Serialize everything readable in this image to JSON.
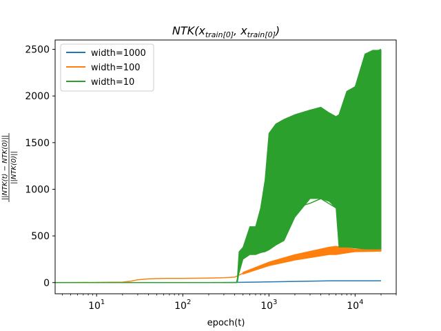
{
  "chart_data": {
    "type": "line",
    "title": "NTK(x_train[0], x_train[0])",
    "title_parts": {
      "main": "NTK(",
      "x1": "x",
      "sub1": "train[0]",
      "comma": ", ",
      "x2": "x",
      "sub2": "train[0]",
      "close": ")"
    },
    "xlabel": "epoch(t)",
    "ylabel": "||NTK(t) − NTK(0)|| / ||NTK(0)||",
    "ylabel_parts": {
      "numerator": "||NTK(t) − NTK(0)||",
      "denominator": "||NTK(0)||"
    },
    "x_scale": "log",
    "xlim": [
      3.3,
      30000
    ],
    "ylim": [
      -120,
      2600
    ],
    "x_major_ticks": [
      {
        "value": 10,
        "base": "10",
        "exp": "1"
      },
      {
        "value": 100,
        "base": "10",
        "exp": "2"
      },
      {
        "value": 1000,
        "base": "10",
        "exp": "3"
      },
      {
        "value": 10000,
        "base": "10",
        "exp": "4"
      }
    ],
    "y_ticks": [
      0,
      500,
      1000,
      1500,
      2000,
      2500
    ],
    "y_tick_labels": [
      "0",
      "500",
      "1000",
      "1500",
      "2000",
      "2500"
    ],
    "grid": false,
    "legend_position": "top-left",
    "series": [
      {
        "name": "width=1000",
        "color": "#1f77b4",
        "points": [
          [
            3.3,
            0
          ],
          [
            200,
            0
          ],
          [
            400,
            2
          ],
          [
            800,
            6
          ],
          [
            1000,
            8
          ],
          [
            2000,
            12
          ],
          [
            5000,
            18
          ],
          [
            10000,
            19
          ],
          [
            20000,
            19
          ]
        ]
      },
      {
        "name": "width=100",
        "color": "#ff7f0e",
        "points": [
          [
            3.3,
            0
          ],
          [
            10,
            2
          ],
          [
            20,
            5
          ],
          [
            25,
            15
          ],
          [
            30,
            30
          ],
          [
            40,
            40
          ],
          [
            60,
            45
          ],
          [
            100,
            45
          ],
          [
            200,
            48
          ],
          [
            300,
            52
          ],
          [
            400,
            58
          ],
          [
            500,
            100
          ],
          [
            700,
            150
          ],
          [
            1000,
            200
          ],
          [
            2000,
            260
          ],
          [
            5000,
            320
          ],
          [
            10000,
            345
          ],
          [
            20000,
            350
          ]
        ],
        "band": [
          [
            500,
            90,
            110
          ],
          [
            1000,
            180,
            220
          ],
          [
            2000,
            240,
            300
          ],
          [
            5000,
            300,
            380
          ],
          [
            6000,
            300,
            390
          ],
          [
            10000,
            330,
            360
          ],
          [
            20000,
            335,
            355
          ]
        ]
      },
      {
        "name": "width=10",
        "color": "#2ca02c",
        "points": [
          [
            3.3,
            0
          ],
          [
            100,
            0
          ],
          [
            300,
            0
          ],
          [
            420,
            0
          ],
          [
            450,
            120
          ],
          [
            500,
            330
          ],
          [
            600,
            330
          ],
          [
            800,
            380
          ],
          [
            1000,
            420
          ],
          [
            1500,
            1000
          ],
          [
            2000,
            800
          ],
          [
            3000,
            850
          ],
          [
            4000,
            900
          ],
          [
            6000,
            800
          ],
          [
            10000,
            950
          ],
          [
            15000,
            2450
          ],
          [
            20000,
            2500
          ]
        ],
        "band": [
          [
            430,
            0,
            60
          ],
          [
            450,
            100,
            330
          ],
          [
            500,
            250,
            380
          ],
          [
            600,
            300,
            600
          ],
          [
            700,
            300,
            600
          ],
          [
            800,
            320,
            800
          ],
          [
            900,
            330,
            1100
          ],
          [
            1000,
            350,
            1600
          ],
          [
            1200,
            400,
            1700
          ],
          [
            1500,
            450,
            1750
          ],
          [
            2000,
            700,
            1800
          ],
          [
            3000,
            900,
            1850
          ],
          [
            4000,
            900,
            1880
          ],
          [
            5000,
            870,
            1820
          ],
          [
            6000,
            800,
            1780
          ],
          [
            6500,
            380,
            1800
          ],
          [
            8000,
            380,
            2050
          ],
          [
            10000,
            370,
            2100
          ],
          [
            13000,
            360,
            2450
          ],
          [
            16000,
            360,
            2490
          ],
          [
            20000,
            360,
            2490
          ]
        ]
      }
    ]
  }
}
